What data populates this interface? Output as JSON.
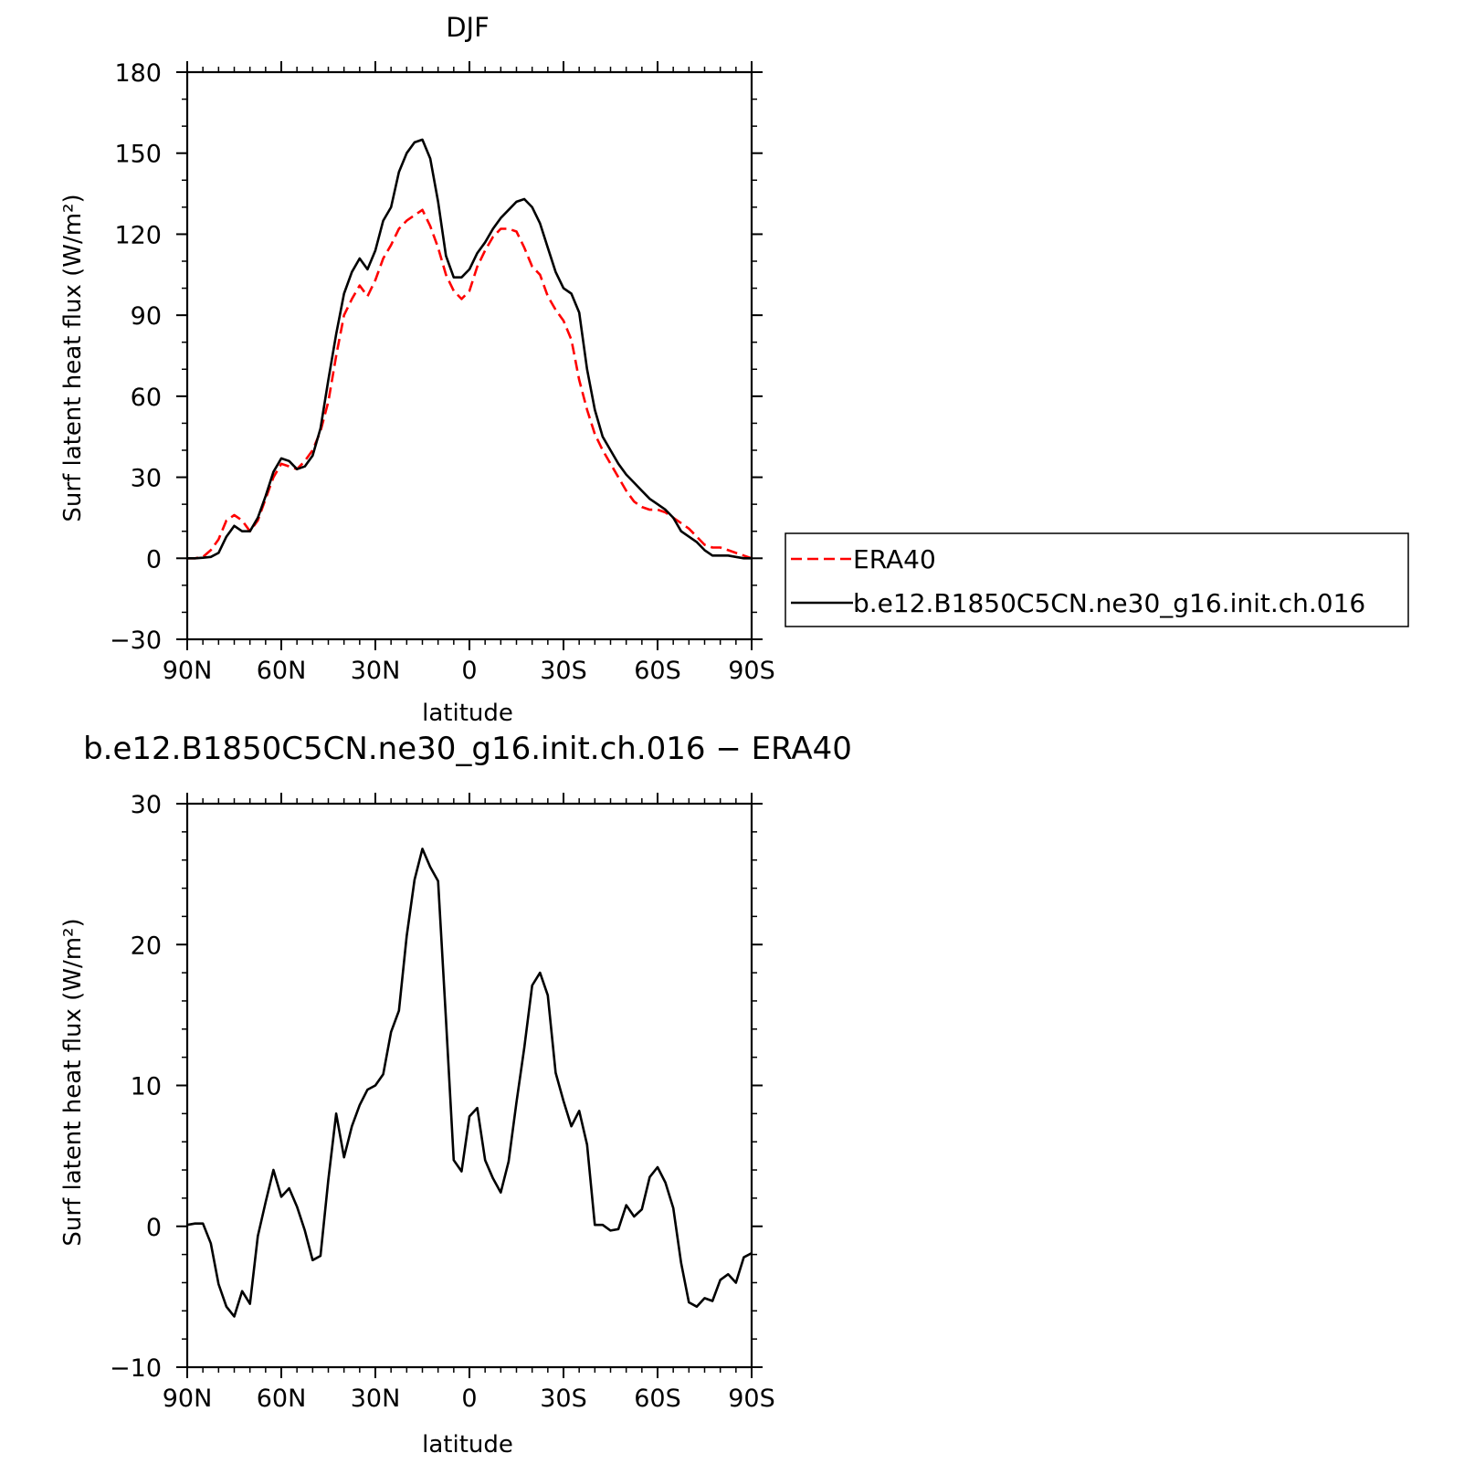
{
  "colors": {
    "model": "#000000",
    "era40": "#ff0000",
    "axes": "#000000",
    "background": "#ffffff"
  },
  "legend": {
    "entries": [
      {
        "label": "ERA40",
        "style": "dashed",
        "color": "#ff0000"
      },
      {
        "label": "b.e12.B1850C5CN.ne30_g16.init.ch.016",
        "style": "solid",
        "color": "#000000"
      }
    ],
    "placement": "right"
  },
  "chart_data": [
    {
      "type": "line",
      "title": "DJF",
      "xlabel": "latitude",
      "ylabel": "Surf latent heat flux (W/m²)",
      "xlim": [
        90,
        -90
      ],
      "ylim": [
        -30,
        180
      ],
      "xticks": [
        90,
        60,
        30,
        0,
        -30,
        -60,
        -90
      ],
      "xtick_labels": [
        "90N",
        "60N",
        "30N",
        "0",
        "30S",
        "60S",
        "90S"
      ],
      "yticks": [
        -30,
        0,
        30,
        60,
        90,
        120,
        150,
        180
      ],
      "ytick_labels": [
        "−30",
        "0",
        "30",
        "60",
        "90",
        "120",
        "150",
        "180"
      ],
      "grid": false,
      "series": [
        {
          "name": "ERA40",
          "style": "dashed",
          "color": "#ff0000",
          "x": [
            90,
            87.5,
            85,
            82.5,
            80,
            77.5,
            75,
            72.5,
            70,
            67.5,
            65,
            62.5,
            60,
            57.5,
            55,
            52.5,
            50,
            47.5,
            45,
            42.5,
            40,
            37.5,
            35,
            32.5,
            30,
            27.5,
            25,
            22.5,
            20,
            17.5,
            15,
            12.5,
            10,
            7.5,
            5,
            2.5,
            0,
            -2.5,
            -5,
            -7.5,
            -10,
            -12.5,
            -15,
            -17.5,
            -20,
            -22.5,
            -25,
            -27.5,
            -30,
            -32.5,
            -35,
            -37.5,
            -40,
            -42.5,
            -45,
            -47.5,
            -50,
            -52.5,
            -55,
            -57.5,
            -60,
            -62.5,
            -65,
            -67.5,
            -70,
            -72.5,
            -75,
            -77.5,
            -80,
            -82.5,
            -85,
            -87.5,
            -90
          ],
          "values": [
            0,
            0,
            0.5,
            3,
            7,
            14,
            16,
            14,
            10,
            14,
            22,
            30,
            35,
            34,
            33,
            36,
            40,
            47,
            58,
            75,
            90,
            96,
            101,
            97,
            103,
            111,
            116,
            122,
            125,
            127,
            129,
            123,
            115,
            105,
            99,
            96,
            99,
            108,
            114,
            119,
            122,
            122,
            121,
            115,
            108,
            105,
            97,
            92,
            88,
            81,
            66,
            55,
            46,
            40,
            35,
            30,
            25,
            21,
            19,
            18,
            18,
            17,
            15,
            13,
            11,
            8,
            5,
            4,
            4,
            3,
            2,
            1,
            0
          ]
        },
        {
          "name": "b.e12.B1850C5CN.ne30_g16.init.ch.016",
          "style": "solid",
          "color": "#000000",
          "x": [
            90,
            87.5,
            85,
            82.5,
            80,
            77.5,
            75,
            72.5,
            70,
            67.5,
            65,
            62.5,
            60,
            57.5,
            55,
            52.5,
            50,
            47.5,
            45,
            42.5,
            40,
            37.5,
            35,
            32.5,
            30,
            27.5,
            25,
            22.5,
            20,
            17.5,
            15,
            12.5,
            10,
            7.5,
            5,
            2.5,
            0,
            -2.5,
            -5,
            -7.5,
            -10,
            -12.5,
            -15,
            -17.5,
            -20,
            -22.5,
            -25,
            -27.5,
            -30,
            -32.5,
            -35,
            -37.5,
            -40,
            -42.5,
            -45,
            -47.5,
            -50,
            -52.5,
            -55,
            -57.5,
            -60,
            -62.5,
            -65,
            -67.5,
            -70,
            -72.5,
            -75,
            -77.5,
            -80,
            -82.5,
            -85,
            -87.5,
            -90
          ],
          "values": [
            0,
            0,
            0.2,
            0.5,
            2,
            8,
            12,
            10,
            10,
            15,
            23,
            32,
            37,
            36,
            33,
            34,
            38,
            48,
            66,
            83,
            98,
            106,
            111,
            107,
            114,
            125,
            130,
            143,
            150,
            154,
            155,
            148,
            132,
            112,
            104,
            104,
            107,
            113,
            117,
            122,
            126,
            129,
            132,
            133,
            130,
            124,
            115,
            106,
            100,
            98,
            91,
            70,
            55,
            45,
            40,
            35,
            31,
            28,
            25,
            22,
            20,
            18,
            15,
            10,
            8,
            6,
            3,
            1,
            1,
            1,
            0.5,
            0,
            0
          ]
        }
      ]
    },
    {
      "type": "line",
      "title": "b.e12.B1850C5CN.ne30_g16.init.ch.016 − ERA40",
      "xlabel": "latitude",
      "ylabel": "Surf latent heat flux (W/m²)",
      "xlim": [
        90,
        -90
      ],
      "ylim": [
        -10,
        30
      ],
      "xticks": [
        90,
        60,
        30,
        0,
        -30,
        -60,
        -90
      ],
      "xtick_labels": [
        "90N",
        "60N",
        "30N",
        "0",
        "30S",
        "60S",
        "90S"
      ],
      "yticks": [
        -10,
        0,
        10,
        20,
        30
      ],
      "ytick_labels": [
        "−10",
        "0",
        "10",
        "20",
        "30"
      ],
      "grid": false,
      "series": [
        {
          "style": "solid",
          "color": "#000000",
          "x": [
            90,
            87.5,
            85,
            82.5,
            80,
            77.5,
            75,
            72.5,
            70,
            67.5,
            65,
            62.5,
            60,
            57.5,
            55,
            52.5,
            50,
            47.5,
            45,
            42.5,
            40,
            37.5,
            35,
            32.5,
            30,
            27.5,
            25,
            22.5,
            20,
            17.5,
            15,
            12.5,
            10,
            7.5,
            5,
            2.5,
            0,
            -2.5,
            -5,
            -7.5,
            -10,
            -12.5,
            -15,
            -17.5,
            -20,
            -22.5,
            -25,
            -27.5,
            -30,
            -32.5,
            -35,
            -37.5,
            -40,
            -42.5,
            -45,
            -47.5,
            -50,
            -52.5,
            -55,
            -57.5,
            -60,
            -62.5,
            -65,
            -67.5,
            -70,
            -72.5,
            -75,
            -77.5,
            -80,
            -82.5,
            -85,
            -87.5,
            -90
          ],
          "values": [
            0.1,
            0.2,
            0.2,
            -1.2,
            -4.1,
            -5.7,
            -6.4,
            -4.6,
            -5.5,
            -0.7,
            1.7,
            4,
            2.1,
            2.7,
            1.4,
            -0.3,
            -2.4,
            -2.1,
            3.3,
            8,
            4.9,
            7.1,
            8.6,
            9.7,
            10,
            10.8,
            13.8,
            15.3,
            20.6,
            24.6,
            26.8,
            25.5,
            24.5,
            14.7,
            4.7,
            3.9,
            7.8,
            8.4,
            4.7,
            3.4,
            2.4,
            4.6,
            8.8,
            12.7,
            17.1,
            18,
            16.4,
            10.9,
            8.9,
            7.1,
            8.2,
            5.8,
            0.1,
            0.1,
            -0.3,
            -0.2,
            1.5,
            0.7,
            1.2,
            3.5,
            4.2,
            3.1,
            1.3,
            -2.6,
            -5.4,
            -5.7,
            -5.1,
            -5.3,
            -3.8,
            -3.4,
            -4,
            -2.2,
            -1.9
          ]
        }
      ]
    }
  ]
}
